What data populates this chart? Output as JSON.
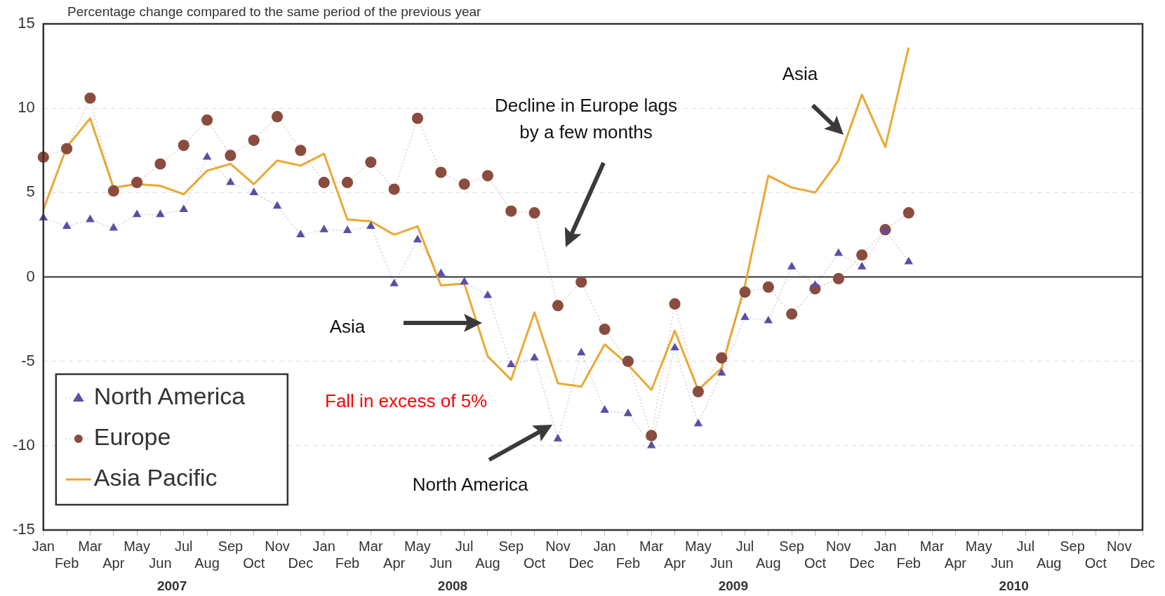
{
  "chart_data": {
    "type": "line",
    "ylabel": "Percentage change compared to the same period of the previous year",
    "categories": [
      "Jan",
      "Feb",
      "Mar",
      "Apr",
      "May",
      "Jun",
      "Jul",
      "Aug",
      "Sep",
      "Oct",
      "Nov",
      "Dec",
      "Jan",
      "Feb",
      "Mar",
      "Apr",
      "May",
      "Jun",
      "Jul",
      "Aug",
      "Sep",
      "Oct",
      "Nov",
      "Dec",
      "Jan",
      "Feb",
      "Mar",
      "Apr",
      "May",
      "Jun",
      "Jul",
      "Aug",
      "Sep",
      "Oct",
      "Nov",
      "Dec",
      "Jan",
      "Feb",
      "Mar",
      "Apr",
      "May",
      "Jun",
      "Jul",
      "Aug",
      "Sep",
      "Oct",
      "Nov",
      "Dec"
    ],
    "series": [
      {
        "name": "North America",
        "color": "#5a4ea6",
        "marker": "triangle",
        "line_style": "dotted",
        "values": [
          3.5,
          3.0,
          3.4,
          2.9,
          3.7,
          3.7,
          4.0,
          7.1,
          5.6,
          5.0,
          4.2,
          2.5,
          2.8,
          2.75,
          3.0,
          -0.4,
          2.2,
          0.2,
          -0.3,
          -1.1,
          -5.2,
          -4.8,
          -9.6,
          -4.5,
          -7.9,
          -8.1,
          -10.0,
          -4.2,
          -8.7,
          -5.7,
          -2.4,
          -2.6,
          0.6,
          -0.5,
          1.4,
          0.6,
          2.75,
          0.9,
          null,
          null,
          null,
          null,
          null,
          null,
          null,
          null,
          null,
          null
        ]
      },
      {
        "name": "Europe",
        "color": "#8a4c3e",
        "marker": "circle",
        "line_style": "dotted",
        "values": [
          7.1,
          7.6,
          10.6,
          5.1,
          5.6,
          6.7,
          7.8,
          9.3,
          7.2,
          8.1,
          9.5,
          7.5,
          5.6,
          5.6,
          6.8,
          5.2,
          9.4,
          6.2,
          5.5,
          6.0,
          3.9,
          3.8,
          -1.7,
          -0.3,
          -3.1,
          -5.0,
          -9.4,
          -1.6,
          -6.8,
          -4.8,
          -0.9,
          -0.6,
          -2.2,
          -0.7,
          -0.1,
          1.3,
          2.8,
          3.8,
          null,
          null,
          null,
          null,
          null,
          null,
          null,
          null,
          null,
          null
        ]
      },
      {
        "name": "Asia Pacific",
        "color": "#eba832",
        "marker": "none",
        "line_style": "solid",
        "values": [
          4.0,
          7.7,
          9.4,
          5.3,
          5.5,
          5.4,
          4.9,
          6.3,
          6.7,
          5.5,
          6.9,
          6.6,
          7.3,
          3.4,
          3.3,
          2.5,
          3.0,
          -0.5,
          -0.4,
          -4.7,
          -6.1,
          -2.1,
          -6.3,
          -6.5,
          -4.0,
          -5.2,
          -6.7,
          -3.2,
          -6.7,
          -5.4,
          -0.5,
          6.0,
          5.3,
          5.0,
          6.9,
          10.8,
          7.7,
          13.6,
          null,
          null,
          null,
          null,
          null,
          null,
          null,
          null,
          null,
          null
        ]
      }
    ],
    "ylim": [
      -15,
      15
    ],
    "yticks": [
      -15,
      -10,
      -5,
      0,
      5,
      10,
      15
    ],
    "grid": "y",
    "legend": "bottom left",
    "ref_lines": [
      {
        "axis": "y",
        "value": 0,
        "color": "#333333",
        "line_style": "solid"
      }
    ],
    "annotations": [
      "Decline in Europe lags\nby a few months",
      "Asia",
      "Asia",
      "Fall in excess of 5%",
      "North America",
      "2007",
      "2008",
      "2009",
      "2010"
    ]
  }
}
